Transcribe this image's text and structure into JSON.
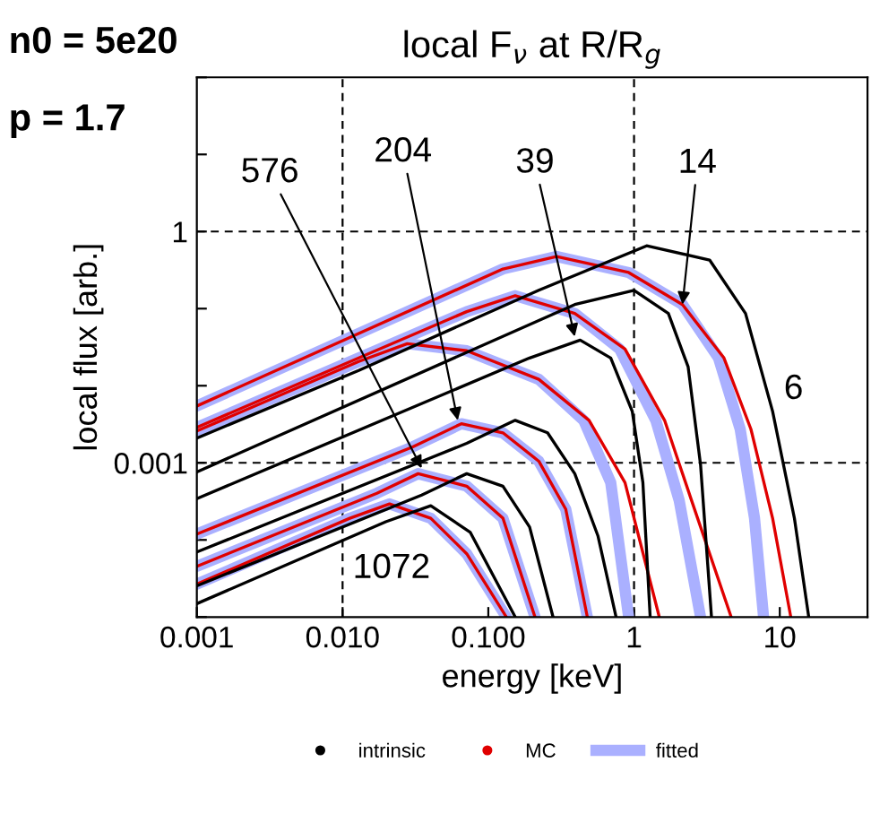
{
  "chart_data": {
    "type": "line",
    "title": "local F$_{ν}$ at R/R$_{g}$",
    "xlabel": "energy [keV]",
    "ylabel": "local flux [arb.]",
    "log": "xy",
    "xlim": [
      0.001,
      40
    ],
    "ylim": [
      1e-05,
      100
    ],
    "xticks": [
      {
        "value": 0.001,
        "label": "0.001"
      },
      {
        "value": 0.01,
        "label": "0.010"
      },
      {
        "value": 0.1,
        "label": "0.100"
      },
      1,
      10
    ],
    "yticks": [
      {
        "value": 1e-05,
        "label": null
      },
      {
        "value": 0.0001,
        "label": null
      },
      0.001,
      {
        "value": 0.01,
        "label": null
      },
      {
        "value": 0.1,
        "label": null
      },
      1,
      {
        "value": 10,
        "label": null
      },
      {
        "value": 100,
        "label": null
      }
    ],
    "grid": false,
    "legend": "bottom",
    "ref_lines": [
      {
        "axis": "x",
        "value": 0.01,
        "color": "#000000",
        "line_style": "dashed"
      },
      {
        "axis": "x",
        "value": 1,
        "color": "#000000",
        "line_style": "dashed"
      },
      {
        "axis": "y",
        "value": 0.001,
        "color": "#000000",
        "line_style": "dashed"
      },
      {
        "axis": "y",
        "value": 1,
        "color": "#000000",
        "line_style": "dashed"
      }
    ],
    "annotations": [
      "n0 = 5e20",
      "p = 1.7",
      {
        "text": "576",
        "x": 0.0349,
        "y": 0.00085
      },
      {
        "text": "204",
        "x": 0.0617,
        "y": 0.00356
      },
      {
        "text": "39",
        "x": 0.392,
        "y": 0.0434
      },
      {
        "text": "14",
        "x": 2.15,
        "y": 0.113
      },
      "6",
      "1072"
    ],
    "series": [
      {
        "name": "fitted",
        "color": "#aab0ff",
        "x": [
          0.001,
          0.126,
          0.294,
          0.918,
          2.15,
          3.8,
          5.35,
          6.71,
          7.74
        ],
        "values": [
          0.00546,
          0.327,
          0.475,
          0.294,
          0.113,
          0.0229,
          0.00273,
          0.000191,
          1e-05
        ]
      },
      {
        "color": "#aab0ff",
        "x": [
          0.001,
          0.0711,
          0.153,
          0.392,
          0.797,
          1.41,
          2.04,
          2.86
        ],
        "values": [
          0.00288,
          0.0914,
          0.147,
          0.0866,
          0.0299,
          0.00356,
          0.000326,
          1e-05
        ]
      },
      {
        "color": "#aab0ff",
        "x": [
          0.001,
          0.0129,
          0.0278,
          0.0711,
          0.222,
          0.451,
          0.692,
          0.918
        ],
        "values": [
          0.00259,
          0.0206,
          0.0351,
          0.0284,
          0.0121,
          0.00356,
          0.000554,
          1e-05
        ]
      },
      {
        "color": "#aab0ff",
        "x": [
          0.001,
          0.0303,
          0.0653,
          0.126,
          0.222,
          0.34,
          0.478
        ],
        "values": [
          0.000119,
          0.00161,
          0.00321,
          0.00245,
          0.00105,
          0.00025,
          1e-05
        ]
      },
      {
        "color": "#aab0ff",
        "x": [
          0.001,
          0.0172,
          0.033,
          0.0711,
          0.126,
          0.209
        ],
        "values": [
          4.55e-05,
          0.000403,
          0.000723,
          0.000498,
          0.000191,
          1e-05
        ]
      },
      {
        "color": "#aab0ff",
        "x": [
          0.001,
          0.0112,
          0.021,
          0.0403,
          0.0711,
          0.133
        ],
        "values": [
          2.67e-05,
          0.000191,
          0.000293,
          0.000191,
          6.61e-05,
          1e-05
        ]
      },
      {
        "name": "MC",
        "color": "#e00000",
        "x": [
          0.001,
          0.126,
          0.294,
          0.918,
          2.15,
          4.14,
          6.34,
          8.93,
          11.9
        ],
        "values": [
          0.00546,
          0.327,
          0.475,
          0.294,
          0.113,
          0.0229,
          0.00273,
          0.000191,
          1e-05
        ]
      },
      {
        "color": "#e00000",
        "x": [
          0.001,
          0.0711,
          0.153,
          0.392,
          0.867,
          1.62,
          2.48,
          4.64
        ],
        "values": [
          0.00288,
          0.0914,
          0.147,
          0.0866,
          0.0299,
          0.00356,
          0.000326,
          1e-05
        ]
      },
      {
        "color": "#e00000",
        "x": [
          0.001,
          0.0129,
          0.0278,
          0.0711,
          0.222,
          0.491,
          0.867,
          1.49
        ],
        "values": [
          0.00259,
          0.0206,
          0.0351,
          0.0284,
          0.0121,
          0.00356,
          0.000554,
          1e-05
        ]
      },
      {
        "color": "#e00000",
        "x": [
          0.001,
          0.0303,
          0.0653,
          0.126,
          0.222,
          0.34,
          0.478
        ],
        "values": [
          0.000119,
          0.00161,
          0.00321,
          0.00245,
          0.00105,
          0.00025,
          1e-05
        ]
      },
      {
        "color": "#e00000",
        "x": [
          0.001,
          0.0172,
          0.033,
          0.0711,
          0.126,
          0.209
        ],
        "values": [
          4.55e-05,
          0.000403,
          0.000723,
          0.000498,
          0.000191,
          1e-05
        ]
      },
      {
        "color": "#e00000",
        "x": [
          0.001,
          0.0112,
          0.021,
          0.0403,
          0.0711,
          0.133
        ],
        "values": [
          2.67e-05,
          0.000191,
          0.000293,
          0.000191,
          6.61e-05,
          1e-05
        ]
      },
      {
        "name": "intrinsic",
        "color": "#000000",
        "x": [
          0.001,
          0.0129,
          0.222,
          1.22,
          3.3,
          5.82,
          8.93,
          12.6,
          15.8
        ],
        "values": [
          0.00209,
          0.0158,
          0.173,
          0.653,
          0.427,
          0.0866,
          0.00465,
          0.000191,
          1e-05
        ]
      },
      {
        "color": "#000000",
        "x": [
          0.001,
          0.392,
          1.0,
          1.72,
          2.35,
          2.86,
          3.4
        ],
        "values": [
          0.000762,
          0.113,
          0.173,
          0.0866,
          0.0176,
          0.000944,
          1e-05
        ]
      },
      {
        "color": "#000000",
        "x": [
          0.001,
          0.192,
          0.427,
          0.692,
          0.972,
          1.15,
          1.29
        ],
        "values": [
          0.000343,
          0.0229,
          0.039,
          0.0229,
          0.00465,
          0.000554,
          1e-05
        ]
      },
      {
        "color": "#000000",
        "x": [
          0.001,
          0.0711,
          0.153,
          0.255,
          0.392,
          0.566,
          0.753
        ],
        "values": [
          6.97e-05,
          0.00179,
          0.00356,
          0.00245,
          0.000723,
          0.000112,
          1e-05
        ]
      },
      {
        "color": "#000000",
        "x": [
          0.001,
          0.0349,
          0.0711,
          0.126,
          0.192,
          0.278
        ],
        "values": [
          2.54e-05,
          0.000382,
          0.000723,
          0.000498,
          0.000147,
          1e-05
        ]
      },
      {
        "color": "#000000",
        "x": [
          0.001,
          0.0198,
          0.0403,
          0.0753,
          0.153
        ],
        "values": [
          1.49e-05,
          0.000172,
          0.000278,
          0.000125,
          1e-05
        ]
      }
    ]
  }
}
